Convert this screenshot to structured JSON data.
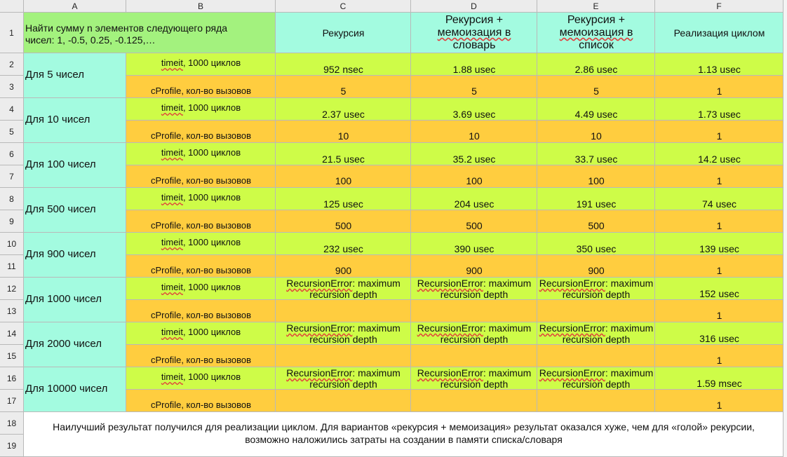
{
  "columns": [
    "A",
    "B",
    "C",
    "D",
    "E",
    "F"
  ],
  "rows": [
    "1",
    "2",
    "3",
    "4",
    "5",
    "6",
    "7",
    "8",
    "9",
    "10",
    "11",
    "12",
    "13",
    "14",
    "15",
    "16",
    "17",
    "18",
    "19"
  ],
  "task": [
    "Найти сумму n элементов следующего ряда",
    "чисел: 1, -0.5, 0.25, -0.125,…"
  ],
  "headers": {
    "c": [
      "Рекурсия"
    ],
    "d": [
      "Рекурсия +",
      "мемоизация в",
      "словарь"
    ],
    "e": [
      "Рекурсия +",
      "мемоизация в",
      "список"
    ],
    "f": [
      "Реализация циклом"
    ]
  },
  "timeit_label": [
    "timeit",
    ", 1000 циклов"
  ],
  "cprofile_label": "cProfile, кол-во вызовов",
  "recursion_error": [
    "RecursionError",
    ": maximum",
    "recursion depth"
  ],
  "groups": [
    {
      "label": "Для 5 чисел",
      "timeit": [
        [
          "952",
          "nsec"
        ],
        [
          "1.88",
          "usec"
        ],
        [
          "2.86",
          "usec"
        ],
        [
          "1.13",
          "usec"
        ]
      ],
      "calls": [
        "5",
        "5",
        "5",
        "1"
      ]
    },
    {
      "label": "Для 10 чисел",
      "timeit": [
        [
          "2.37",
          "usec"
        ],
        [
          "3.69",
          "usec"
        ],
        [
          "4.49",
          "usec"
        ],
        [
          "1.73",
          "usec"
        ]
      ],
      "calls": [
        "10",
        "10",
        "10",
        "1"
      ]
    },
    {
      "label": "Для 100 чисел",
      "timeit": [
        [
          "21.5",
          "usec"
        ],
        [
          "35.2",
          "usec"
        ],
        [
          "33.7",
          "usec"
        ],
        [
          "14.2",
          "usec"
        ]
      ],
      "calls": [
        "100",
        "100",
        "100",
        "1"
      ]
    },
    {
      "label": "Для 500 чисел",
      "timeit": [
        [
          "125",
          "usec"
        ],
        [
          "204",
          "usec"
        ],
        [
          "191",
          "usec"
        ],
        [
          "74",
          "usec"
        ]
      ],
      "calls": [
        "500",
        "500",
        "500",
        "1"
      ]
    },
    {
      "label": "Для 900 чисел",
      "timeit": [
        [
          "232",
          "usec"
        ],
        [
          "390",
          "usec"
        ],
        [
          "350",
          "usec"
        ],
        [
          "139",
          "usec"
        ]
      ],
      "calls": [
        "900",
        "900",
        "900",
        "1"
      ]
    },
    {
      "label": "Для 1000 чисел",
      "timeit": [
        "error",
        "error",
        "error",
        [
          "152",
          "usec"
        ]
      ],
      "calls": [
        "",
        "",
        "",
        "1"
      ]
    },
    {
      "label": "Для 2000 чисел",
      "timeit": [
        "error",
        "error",
        "error",
        [
          "316",
          "usec"
        ]
      ],
      "calls": [
        "",
        "",
        "",
        "1"
      ]
    },
    {
      "label": "Для 10000 чисел",
      "timeit": [
        "error",
        "error",
        "error",
        [
          "1.59",
          "msec"
        ]
      ],
      "calls": [
        "",
        "",
        "",
        "1"
      ]
    }
  ],
  "conclusion": [
    "Наилучший результат получился для реализации циклом. Для вариантов «рекурсия + мемоизация» результат оказался хуже, чем для «голой» рекурсии,",
    "возможно наложились затраты на создании в памяти списка/словаря"
  ],
  "colors": {
    "header": "#ececec",
    "task": "#a3f27e",
    "heading": "#a3fbe0",
    "timeit": "#cefc48",
    "calls": "#ffcd3f",
    "spellcheck": "#e23b3b"
  }
}
